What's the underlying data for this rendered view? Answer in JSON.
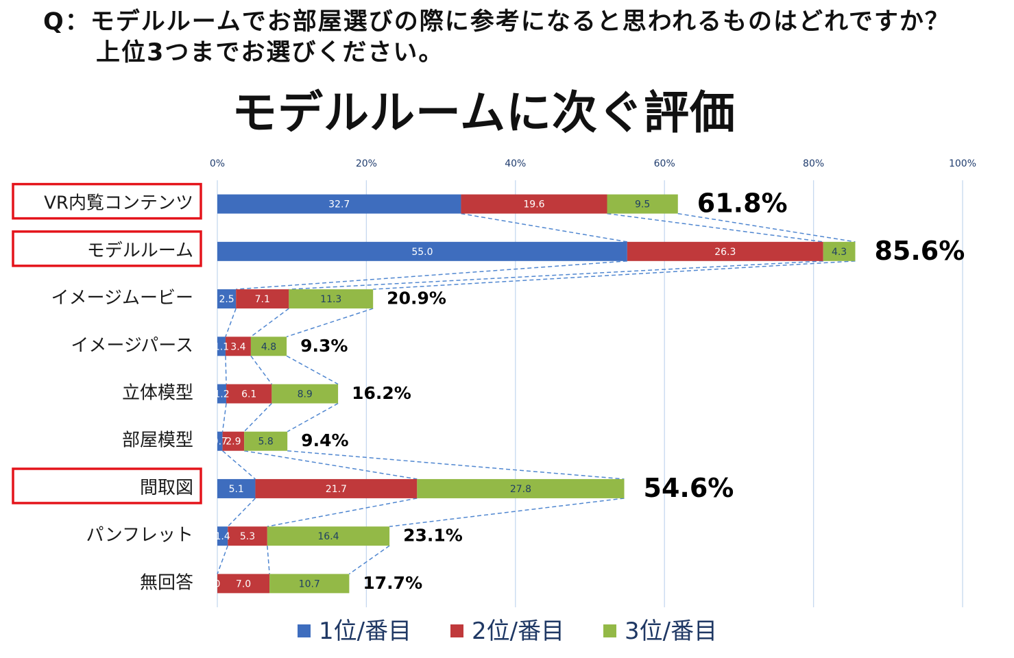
{
  "question": {
    "line1": "Q：モデルルームでお部屋選びの際に参考になると思われるものはどれですか？",
    "line2": "上位3つまでお選びください。"
  },
  "chart_data": {
    "type": "bar",
    "orientation": "horizontal",
    "stacked": true,
    "title": "モデルルームに次ぐ評価",
    "xlim": [
      0,
      100
    ],
    "x_tick_values": [
      0,
      20,
      40,
      60,
      80,
      100
    ],
    "x_ticks": [
      "0%",
      "20%",
      "40%",
      "60%",
      "80%",
      "100%"
    ],
    "grid": true,
    "legend_position": "bottom",
    "series_lines": true,
    "categories": [
      "VR内覧コンテンツ",
      "モデルルーム",
      "イメージムービー",
      "イメージパース",
      "立体模型",
      "部屋模型",
      "間取図",
      "パンフレット",
      "無回答"
    ],
    "highlighted": [
      true,
      true,
      false,
      false,
      false,
      false,
      true,
      false,
      false
    ],
    "highlight_color": "#e4141b",
    "series": [
      {
        "name": "1位/番目",
        "color": "#3e6dbe",
        "label_color": "#ffffff",
        "values": [
          32.7,
          55.0,
          2.5,
          1.1,
          1.2,
          0.7,
          5.1,
          1.4,
          0
        ],
        "labels": [
          "32.7",
          "55.0",
          "2.5",
          "1.1",
          "1.2",
          "0.7",
          "5.1",
          "1.4",
          "0"
        ]
      },
      {
        "name": "2位/番目",
        "color": "#c0393b",
        "label_color": "#ffffff",
        "values": [
          19.6,
          26.3,
          7.1,
          3.4,
          6.1,
          2.9,
          21.7,
          5.3,
          7.0
        ],
        "labels": [
          "19.6",
          "26.3",
          "7.1",
          "3.4",
          "6.1",
          "2.9",
          "21.7",
          "5.3",
          "7.0"
        ]
      },
      {
        "name": "3位/番目",
        "color": "#93b947",
        "label_color": "#1f3f63",
        "values": [
          9.5,
          4.3,
          11.3,
          4.8,
          8.9,
          5.8,
          27.8,
          16.4,
          10.7
        ],
        "labels": [
          "9.5",
          "4.3",
          "11.3",
          "4.8",
          "8.9",
          "5.8",
          "27.8",
          "16.4",
          "10.7"
        ]
      }
    ],
    "totals": [
      "61.8%",
      "85.6%",
      "20.9%",
      "9.3%",
      "16.2%",
      "9.4%",
      "54.6%",
      "23.1%",
      "17.7%"
    ]
  }
}
